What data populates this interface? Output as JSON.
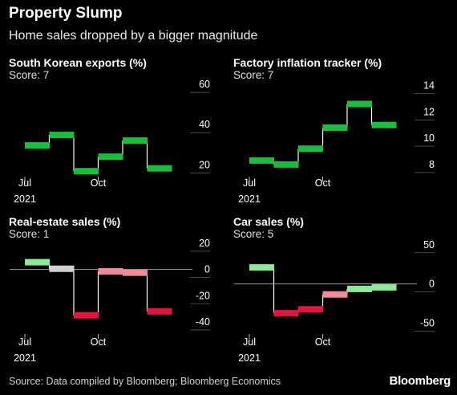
{
  "header": {
    "title": "Property Slump",
    "subtitle": "Home sales dropped by a bigger magnitude"
  },
  "footer": {
    "source": "Source: Data compiled by Bloomberg; Bloomberg Economics",
    "logo": "Bloomberg"
  },
  "chart_data": [
    {
      "type": "line",
      "step": true,
      "title": "South Korean exports (%)",
      "score": "Score: 7",
      "x": [
        "2021-07",
        "2021-08",
        "2021-09",
        "2021-10",
        "2021-11",
        "2021-12"
      ],
      "values": [
        29.7,
        34.9,
        16.9,
        24.1,
        32.1,
        18.3
      ],
      "yticks": [
        20,
        40,
        60
      ],
      "ylim": [
        15,
        62
      ],
      "xticks": [
        {
          "label": "Jul",
          "sub": "2021",
          "index": 0
        },
        {
          "label": "Oct",
          "sub": "",
          "index": 3
        }
      ],
      "colors": [
        "#1bbd3c",
        "#1bbd3c",
        "#1bbd3c",
        "#1bbd3c",
        "#1bbd3c",
        "#1bbd3c"
      ]
    },
    {
      "type": "line",
      "step": true,
      "title": "Factory inflation tracker (%)",
      "score": "Score: 7",
      "x": [
        "2021-07",
        "2021-08",
        "2021-09",
        "2021-10",
        "2021-11",
        "2021-12"
      ],
      "values": [
        8.3,
        8.0,
        9.2,
        10.8,
        12.6,
        11.0
      ],
      "yticks": [
        8,
        10,
        12,
        14
      ],
      "ylim": [
        7.2,
        14.4
      ],
      "xticks": [
        {
          "label": "Jul",
          "sub": "2021",
          "index": 0
        },
        {
          "label": "Oct",
          "sub": "",
          "index": 3
        }
      ],
      "colors": [
        "#1bbd3c",
        "#1bbd3c",
        "#1bbd3c",
        "#1bbd3c",
        "#1bbd3c",
        "#1bbd3c"
      ]
    },
    {
      "type": "line",
      "step": true,
      "title": "Real-estate sales (%)",
      "score": "Score: 1",
      "x": [
        "2021-07",
        "2021-08",
        "2021-09",
        "2021-10",
        "2021-11",
        "2021-12"
      ],
      "values": [
        5.5,
        0.5,
        -35,
        -1.5,
        -2.5,
        -32
      ],
      "yticks": [
        -40,
        -20,
        0,
        20
      ],
      "ylim": [
        -48,
        23
      ],
      "zero_line": true,
      "xticks": [
        {
          "label": "Jul",
          "sub": "2021",
          "index": 0
        },
        {
          "label": "Oct",
          "sub": "",
          "index": 3
        }
      ],
      "colors": [
        "#8ee89a",
        "#d2d2d2",
        "#e0163e",
        "#f28a9a",
        "#f28a9a",
        "#e0163e"
      ]
    },
    {
      "type": "line",
      "step": true,
      "title": "Car sales (%)",
      "score": "Score: 5",
      "x": [
        "2021-07",
        "2021-08",
        "2021-09",
        "2021-10",
        "2021-11",
        "2021-12"
      ],
      "values": [
        21,
        -37.5,
        -32.5,
        -13.5,
        -6.5,
        -4.5
      ],
      "yticks": [
        -50,
        0,
        50
      ],
      "ylim": [
        -62,
        57
      ],
      "zero_line": true,
      "xticks": [
        {
          "label": "Jul",
          "sub": "2021",
          "index": 0
        },
        {
          "label": "Oct",
          "sub": "",
          "index": 3
        }
      ],
      "colors": [
        "#8ee89a",
        "#e0163e",
        "#e0163e",
        "#f28a9a",
        "#8ee89a",
        "#8ee89a"
      ]
    }
  ]
}
